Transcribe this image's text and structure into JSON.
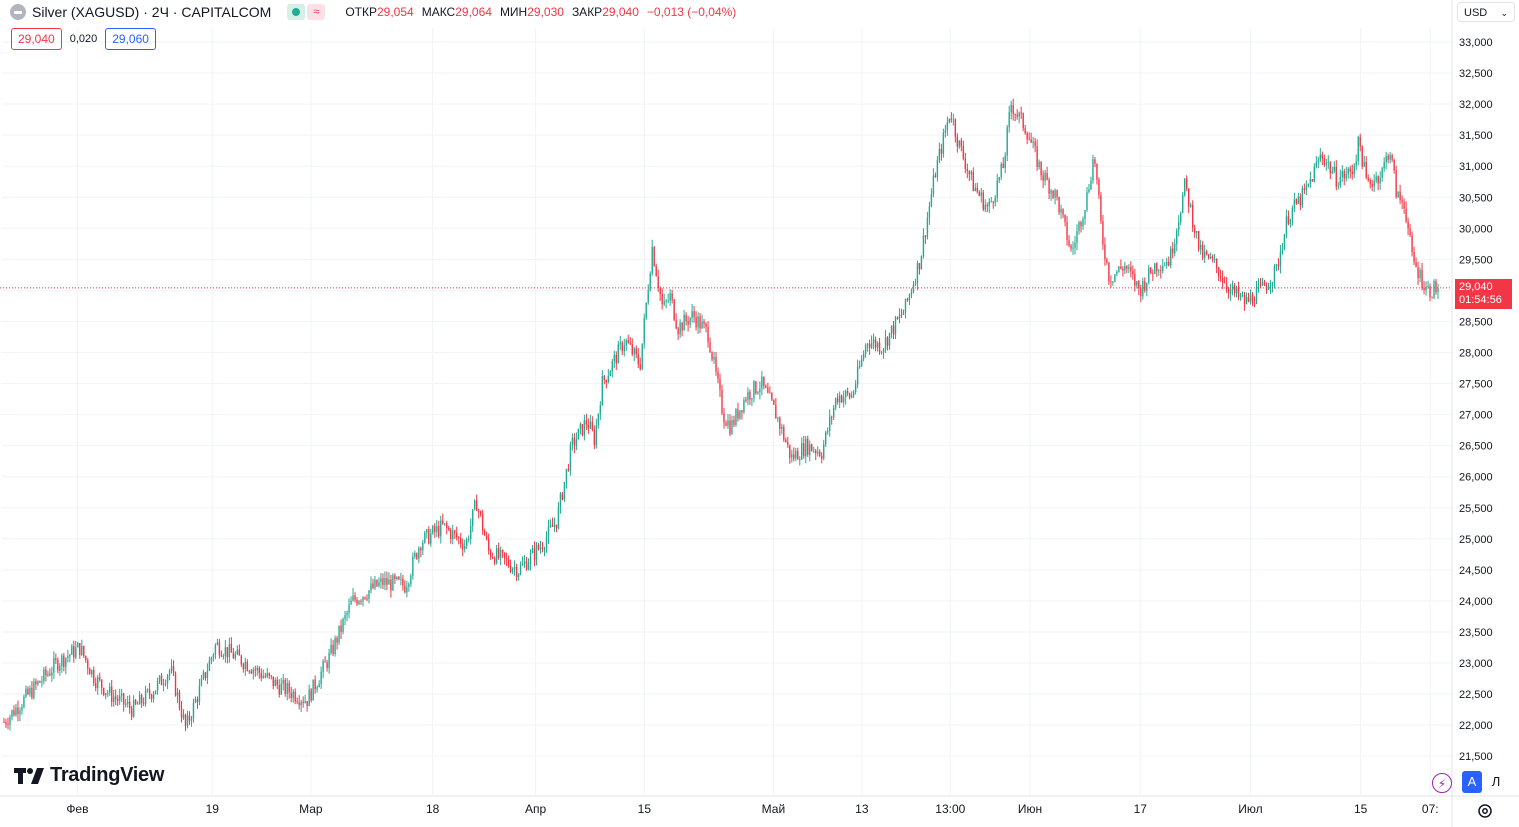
{
  "header": {
    "symbol_title": "Silver (XAGUSD) · 2Ч · CAPITALCOM",
    "indicator_icon_label": "≈",
    "ohlc": [
      {
        "key": "ОТКР",
        "value": "29,054"
      },
      {
        "key": "МАКС",
        "value": "29,064"
      },
      {
        "key": "МИН",
        "value": "29,030"
      },
      {
        "key": "ЗАКР",
        "value": "29,040"
      }
    ],
    "change": "−0,013 (−0,04%)"
  },
  "quote": {
    "bid": "29,040",
    "spread": "0,020",
    "ask": "29,060"
  },
  "currency_select": {
    "value": "USD"
  },
  "last_price_tag": {
    "price": "29,040",
    "countdown": "01:54:56"
  },
  "branding": {
    "logo_text": "TradingView"
  },
  "controls": {
    "auto_label": "A",
    "log_label": "Л",
    "lightning_icon": "lightning-icon",
    "settings_icon": "gear-icon"
  },
  "colors": {
    "up": "#22ab94",
    "down": "#f23645",
    "grid": "#f0f3fa",
    "last_price_line": "#f23645"
  },
  "chart_data": {
    "type": "candlestick",
    "timeframe": "2Ч",
    "price_scale": "right",
    "ylim": [
      21200,
      33300
    ],
    "y_ticks": [
      "33,000",
      "32,500",
      "32,000",
      "31,500",
      "31,000",
      "30,500",
      "30,000",
      "29,500",
      "29,000",
      "28,500",
      "28,000",
      "27,500",
      "27,000",
      "26,500",
      "26,000",
      "25,500",
      "25,000",
      "24,500",
      "24,000",
      "23,500",
      "23,000",
      "22,500",
      "22,000",
      "21,500"
    ],
    "x_ticks": [
      "Фев",
      "19",
      "Мар",
      "18",
      "Апр",
      "15",
      "Май",
      "13",
      "13:00",
      "Июн",
      "17",
      "Июл",
      "15",
      "07:"
    ],
    "grid": true,
    "last_price": 29.04,
    "path": [
      {
        "x": 0,
        "y": 22.05
      },
      {
        "x": 0.02,
        "y": 22.6
      },
      {
        "x": 0.035,
        "y": 23.0
      },
      {
        "x": 0.05,
        "y": 23.25
      },
      {
        "x": 0.06,
        "y": 22.75
      },
      {
        "x": 0.07,
        "y": 22.5
      },
      {
        "x": 0.085,
        "y": 22.25
      },
      {
        "x": 0.1,
        "y": 22.6
      },
      {
        "x": 0.11,
        "y": 22.9
      },
      {
        "x": 0.12,
        "y": 21.95
      },
      {
        "x": 0.14,
        "y": 23.3
      },
      {
        "x": 0.16,
        "y": 23.0
      },
      {
        "x": 0.18,
        "y": 22.65
      },
      {
        "x": 0.2,
        "y": 22.4
      },
      {
        "x": 0.215,
        "y": 23.1
      },
      {
        "x": 0.23,
        "y": 24.0
      },
      {
        "x": 0.25,
        "y": 24.3
      },
      {
        "x": 0.265,
        "y": 24.25
      },
      {
        "x": 0.275,
        "y": 24.95
      },
      {
        "x": 0.29,
        "y": 25.2
      },
      {
        "x": 0.305,
        "y": 24.9
      },
      {
        "x": 0.312,
        "y": 25.6
      },
      {
        "x": 0.32,
        "y": 24.8
      },
      {
        "x": 0.34,
        "y": 24.5
      },
      {
        "x": 0.355,
        "y": 24.9
      },
      {
        "x": 0.365,
        "y": 25.3
      },
      {
        "x": 0.375,
        "y": 26.5
      },
      {
        "x": 0.385,
        "y": 26.9
      },
      {
        "x": 0.39,
        "y": 26.6
      },
      {
        "x": 0.395,
        "y": 27.5
      },
      {
        "x": 0.41,
        "y": 28.2
      },
      {
        "x": 0.42,
        "y": 27.8
      },
      {
        "x": 0.428,
        "y": 29.7
      },
      {
        "x": 0.435,
        "y": 28.7
      },
      {
        "x": 0.44,
        "y": 28.9
      },
      {
        "x": 0.445,
        "y": 28.4
      },
      {
        "x": 0.455,
        "y": 28.6
      },
      {
        "x": 0.465,
        "y": 28.3
      },
      {
        "x": 0.475,
        "y": 27.0
      },
      {
        "x": 0.48,
        "y": 26.8
      },
      {
        "x": 0.49,
        "y": 27.3
      },
      {
        "x": 0.5,
        "y": 27.5
      },
      {
        "x": 0.51,
        "y": 27.0
      },
      {
        "x": 0.52,
        "y": 26.3
      },
      {
        "x": 0.53,
        "y": 26.5
      },
      {
        "x": 0.54,
        "y": 26.4
      },
      {
        "x": 0.55,
        "y": 27.3
      },
      {
        "x": 0.56,
        "y": 27.3
      },
      {
        "x": 0.57,
        "y": 28.2
      },
      {
        "x": 0.58,
        "y": 28.1
      },
      {
        "x": 0.595,
        "y": 28.7
      },
      {
        "x": 0.605,
        "y": 29.5
      },
      {
        "x": 0.615,
        "y": 30.9
      },
      {
        "x": 0.625,
        "y": 31.9
      },
      {
        "x": 0.63,
        "y": 31.4
      },
      {
        "x": 0.64,
        "y": 30.7
      },
      {
        "x": 0.65,
        "y": 30.3
      },
      {
        "x": 0.66,
        "y": 31.0
      },
      {
        "x": 0.665,
        "y": 32.0
      },
      {
        "x": 0.675,
        "y": 31.6
      },
      {
        "x": 0.685,
        "y": 30.9
      },
      {
        "x": 0.695,
        "y": 30.5
      },
      {
        "x": 0.705,
        "y": 29.6
      },
      {
        "x": 0.715,
        "y": 30.5
      },
      {
        "x": 0.72,
        "y": 31.2
      },
      {
        "x": 0.725,
        "y": 29.9
      },
      {
        "x": 0.73,
        "y": 29.2
      },
      {
        "x": 0.74,
        "y": 29.4
      },
      {
        "x": 0.75,
        "y": 29.0
      },
      {
        "x": 0.76,
        "y": 29.4
      },
      {
        "x": 0.77,
        "y": 29.5
      },
      {
        "x": 0.78,
        "y": 30.7
      },
      {
        "x": 0.79,
        "y": 29.6
      },
      {
        "x": 0.8,
        "y": 29.4
      },
      {
        "x": 0.81,
        "y": 29.0
      },
      {
        "x": 0.82,
        "y": 28.8
      },
      {
        "x": 0.83,
        "y": 29.0
      },
      {
        "x": 0.84,
        "y": 29.3
      },
      {
        "x": 0.848,
        "y": 30.2
      },
      {
        "x": 0.86,
        "y": 30.6
      },
      {
        "x": 0.87,
        "y": 31.2
      },
      {
        "x": 0.88,
        "y": 30.8
      },
      {
        "x": 0.89,
        "y": 30.9
      },
      {
        "x": 0.895,
        "y": 31.4
      },
      {
        "x": 0.9,
        "y": 30.7
      },
      {
        "x": 0.91,
        "y": 30.9
      },
      {
        "x": 0.915,
        "y": 31.3
      },
      {
        "x": 0.92,
        "y": 30.5
      },
      {
        "x": 0.925,
        "y": 30.4
      },
      {
        "x": 0.93,
        "y": 29.5
      },
      {
        "x": 0.94,
        "y": 29.0
      },
      {
        "x": 0.947,
        "y": 29.04
      }
    ]
  }
}
